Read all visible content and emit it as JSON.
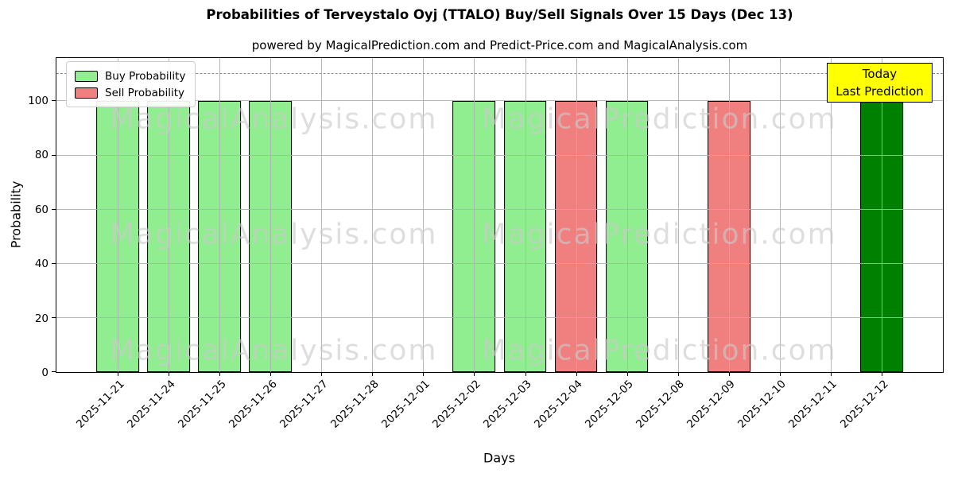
{
  "title": "Probabilities of Terveystalo Oyj (TTALO) Buy/Sell Signals Over 15 Days (Dec 13)",
  "subtitle": "powered by MagicalPrediction.com and Predict-Price.com and MagicalAnalysis.com",
  "legend": {
    "items": [
      {
        "label": "Buy Probability",
        "color": "#90ee90"
      },
      {
        "label": "Sell Probability",
        "color": "#f08080"
      }
    ]
  },
  "today_annotation": {
    "line1": "Today",
    "line2": "Last Prediction",
    "bg_color": "#ffff00"
  },
  "watermark": {
    "texts": [
      "MagicalAnalysis.com",
      "MagicalPrediction.com"
    ],
    "rows": 3
  },
  "chart_data": {
    "type": "bar",
    "title": "Probabilities of Terveystalo Oyj (TTALO) Buy/Sell Signals Over 15 Days (Dec 13)",
    "xlabel": "Days",
    "ylabel": "Probability",
    "ylim": [
      0,
      116
    ],
    "yticks": [
      0,
      20,
      40,
      60,
      80,
      100
    ],
    "grid": true,
    "legend_position": "upper left",
    "threshold_line": {
      "y": 110,
      "style": "dashed",
      "color": "#8a8a8a"
    },
    "categories": [
      "2025-11-21",
      "2025-11-24",
      "2025-11-25",
      "2025-11-26",
      "2025-11-27",
      "2025-11-28",
      "2025-12-01",
      "2025-12-02",
      "2025-12-03",
      "2025-12-04",
      "2025-12-05",
      "2025-12-08",
      "2025-12-09",
      "2025-12-10",
      "2025-12-11",
      "2025-12-12"
    ],
    "series": [
      {
        "name": "Buy Probability",
        "color": "#90ee90",
        "values": [
          100,
          100,
          100,
          100,
          0,
          0,
          0,
          100,
          100,
          0,
          100,
          0,
          0,
          0,
          0,
          100
        ]
      },
      {
        "name": "Sell Probability",
        "color": "#f08080",
        "values": [
          0,
          0,
          0,
          0,
          0,
          0,
          0,
          0,
          0,
          100,
          0,
          0,
          100,
          0,
          0,
          0
        ]
      }
    ],
    "highlight": {
      "index": 15,
      "series": "Buy Probability",
      "color": "#008000",
      "label": "Today Last Prediction"
    }
  }
}
